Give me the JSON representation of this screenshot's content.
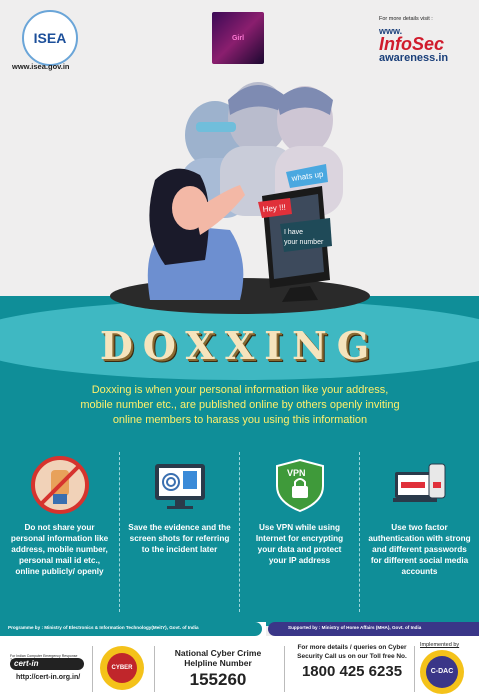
{
  "header": {
    "isea_logo_text": "ISEA",
    "isea_url": "www.isea.gov.in",
    "center_badge_text": "Girl",
    "infosec_small": "For more details visit :",
    "infosec_www": "www.",
    "infosec_brand": "InfoSec",
    "infosec_awareness": "awareness.in"
  },
  "illustration": {
    "bubble_whatsup": "whats up",
    "bubble_hey": "Hey !!!",
    "bubble_number_1": "I have",
    "bubble_number_2": "your number"
  },
  "title": "DOXXING",
  "description": "Doxxing is when your personal information like your address, mobile number etc., are published online by others openly inviting online members to harass you using this information",
  "features": [
    {
      "icon": "stop-hand-icon",
      "text": "Do not share your personal information like address, mobile number, personal mail id etc., online publicly/ openly"
    },
    {
      "icon": "fingerprint-id-icon",
      "text": "Save the evidence and the screen shots for referring to the incident later"
    },
    {
      "icon": "vpn-shield-icon",
      "text": "Use VPN while using Internet for encrypting your data and protect your IP address"
    },
    {
      "icon": "two-factor-icon",
      "text": "Use two factor authentication with strong and different passwords for different social media accounts"
    }
  ],
  "vpn_label": "VPN",
  "footer": {
    "programme": "Programme by : Ministry of Electronics & Information Technology(MeitY), Govt. of India",
    "supported": "Supported by : Ministry of Home Affairs (MHA), Govt. of India",
    "cert_tiny": "For Indian Computer Emergency Response Team",
    "cert_logo": "cert-in",
    "cert_url": "http://cert-in.org.in/",
    "cyber_badge": "CYBER DOST",
    "helpline_title": "National Cyber Crime Helpline Number",
    "helpline_number": "155260",
    "toll_text": "For more details / queries on Cyber Security Call us on our Toll free No.",
    "toll_number": "1800 425 6235",
    "implemented_by": "Implemented by",
    "cdac_badge": "C-DAC"
  },
  "colors": {
    "teal": "#0f8e98",
    "light_teal": "#3fb8c2",
    "title_gold": "#f6e4bd",
    "desc_yellow": "#fff06b",
    "purple": "#3a3688"
  }
}
